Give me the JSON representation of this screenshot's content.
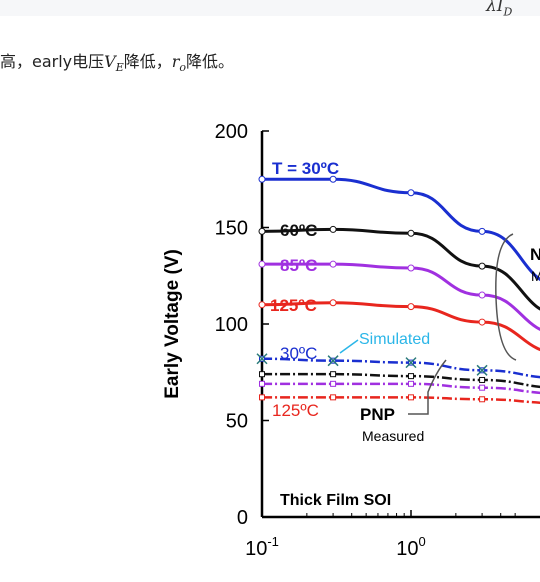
{
  "top_formula": {
    "lambda_i": "λI",
    "sub": "D"
  },
  "paragraph": {
    "prefix": "高，early电压",
    "ve_var": "V",
    "ve_sub": "E",
    "middle": "降低，",
    "ro_var": "r",
    "ro_sub": "o",
    "suffix": "降低。"
  },
  "chart_data": {
    "type": "line",
    "ylabel": "Early Voltage (V)",
    "y_ticks": [
      "0",
      "50",
      "100",
      "150",
      "200"
    ],
    "ylim": [
      0,
      200
    ],
    "x_scale": "log",
    "x_ticks": [
      "10^-1",
      "10^0"
    ],
    "grid": false,
    "series": [
      {
        "name": "T = 30ºC",
        "group": "NPN",
        "color": "#1a2fd0",
        "style": "solid",
        "x": [
          0.1,
          0.3,
          1,
          3,
          10
        ],
        "y": [
          175,
          175,
          168,
          148,
          120
        ]
      },
      {
        "name": "60ºC",
        "group": "NPN",
        "color": "#111111",
        "style": "solid",
        "x": [
          0.1,
          0.3,
          1,
          3,
          10
        ],
        "y": [
          148,
          149,
          147,
          130,
          105
        ]
      },
      {
        "name": "85ºC",
        "group": "NPN",
        "color": "#a030e0",
        "style": "solid",
        "x": [
          0.1,
          0.3,
          1,
          3,
          10
        ],
        "y": [
          131,
          131,
          129,
          115,
          95
        ]
      },
      {
        "name": "125ºC",
        "group": "NPN",
        "color": "#e8261e",
        "style": "solid",
        "x": [
          0.1,
          0.3,
          1,
          3,
          10
        ],
        "y": [
          110,
          111,
          109,
          101,
          85
        ]
      },
      {
        "name": "30ºC",
        "group": "PNP",
        "color": "#1a2fd0",
        "style": "dashdot",
        "x": [
          0.1,
          0.3,
          1,
          3,
          10
        ],
        "y": [
          82,
          81,
          80,
          76,
          72
        ]
      },
      {
        "name": "",
        "group": "PNP",
        "color": "#111111",
        "style": "dashdot",
        "x": [
          0.1,
          0.3,
          1,
          3,
          10
        ],
        "y": [
          74,
          74,
          73,
          71,
          67
        ]
      },
      {
        "name": "",
        "group": "PNP",
        "color": "#a030e0",
        "style": "dashdot",
        "x": [
          0.1,
          0.3,
          1,
          3,
          10
        ],
        "y": [
          69,
          69,
          69,
          67,
          64
        ]
      },
      {
        "name": "125ºC",
        "group": "PNP",
        "color": "#e8261e",
        "style": "dashdot",
        "x": [
          0.1,
          0.3,
          1,
          3,
          10
        ],
        "y": [
          62,
          62,
          62,
          61,
          59
        ]
      }
    ],
    "simulated_points": {
      "x": [
        0.1,
        0.3,
        1,
        3
      ],
      "y": [
        82,
        81,
        80,
        76
      ]
    },
    "annotations": {
      "simulated": "Simulated",
      "pnp": "PNP",
      "measured": "Measured",
      "film": "Thick Film SOI",
      "npn_partial": "N",
      "npn_measured_partial": "M"
    }
  }
}
